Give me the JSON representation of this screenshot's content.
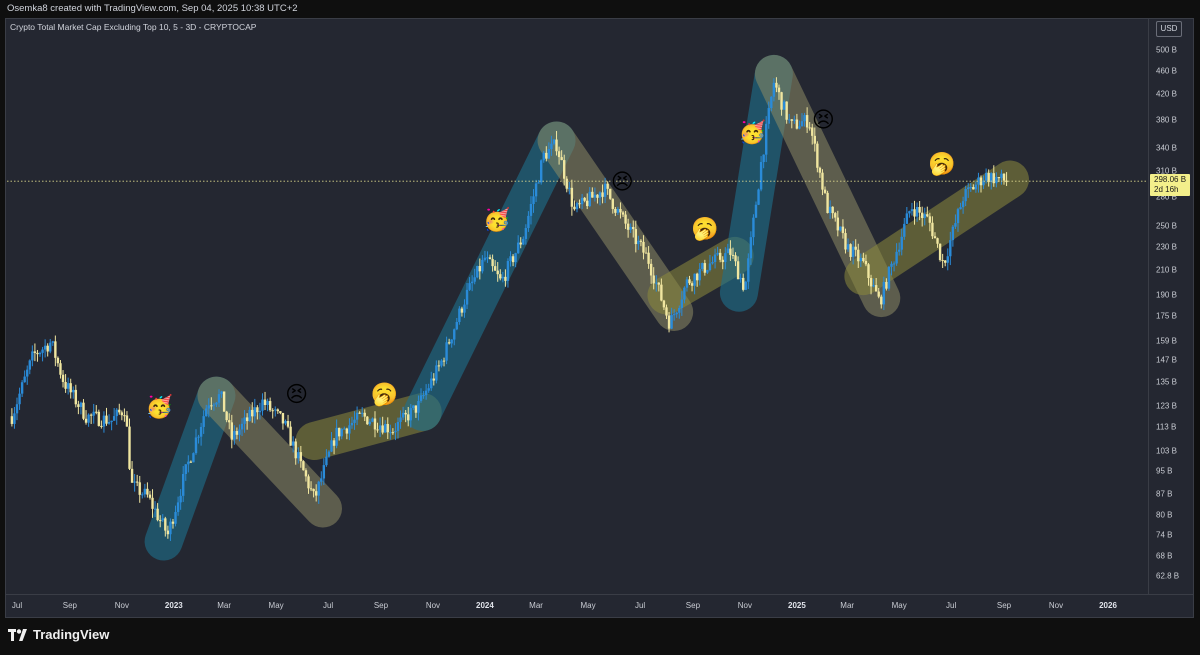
{
  "header": {
    "attribution": "Osemka8 created with TradingView.com, Sep 04, 2025 10:38 UTC+2"
  },
  "chart_data": {
    "type": "candlestick",
    "title": "Crypto Total Market Cap Excluding Top 10, 5 - 3D - CRYPTOCAP",
    "currency": "USD",
    "y_scale": "log",
    "y_ticks": [
      "500 B",
      "460 B",
      "420 B",
      "380 B",
      "340 B",
      "310 B",
      "280 B",
      "250 B",
      "230 B",
      "210 B",
      "190 B",
      "175 B",
      "159 B",
      "147 B",
      "135 B",
      "123 B",
      "113 B",
      "103 B",
      "95 B",
      "87 B",
      "80 B",
      "74 B",
      "68 B",
      "62.8 B"
    ],
    "x_ticks": [
      {
        "label": "Jul",
        "year": false
      },
      {
        "label": "Sep",
        "year": false
      },
      {
        "label": "Nov",
        "year": false
      },
      {
        "label": "2023",
        "year": true
      },
      {
        "label": "Mar",
        "year": false
      },
      {
        "label": "May",
        "year": false
      },
      {
        "label": "Jul",
        "year": false
      },
      {
        "label": "Sep",
        "year": false
      },
      {
        "label": "Nov",
        "year": false
      },
      {
        "label": "2024",
        "year": true
      },
      {
        "label": "Mar",
        "year": false
      },
      {
        "label": "May",
        "year": false
      },
      {
        "label": "Jul",
        "year": false
      },
      {
        "label": "Sep",
        "year": false
      },
      {
        "label": "Nov",
        "year": false
      },
      {
        "label": "2025",
        "year": true
      },
      {
        "label": "Mar",
        "year": false
      },
      {
        "label": "May",
        "year": false
      },
      {
        "label": "Jul",
        "year": false
      },
      {
        "label": "Sep",
        "year": false
      },
      {
        "label": "Nov",
        "year": false
      },
      {
        "label": "2026",
        "year": true
      }
    ],
    "current_price": {
      "value": "298.06 B",
      "countdown": "2d 16h"
    },
    "price_path": [
      [
        "2022-06-25",
        118
      ],
      [
        "2022-07-20",
        150
      ],
      [
        "2022-08-10",
        158
      ],
      [
        "2022-08-25",
        135
      ],
      [
        "2022-09-20",
        118
      ],
      [
        "2022-10-20",
        116
      ],
      [
        "2022-11-05",
        122
      ],
      [
        "2022-11-12",
        90
      ],
      [
        "2022-12-01",
        86
      ],
      [
        "2022-12-25",
        74
      ],
      [
        "2023-01-15",
        95
      ],
      [
        "2023-02-10",
        125
      ],
      [
        "2023-02-25",
        128
      ],
      [
        "2023-03-10",
        108
      ],
      [
        "2023-04-15",
        125
      ],
      [
        "2023-05-10",
        115
      ],
      [
        "2023-06-15",
        85
      ],
      [
        "2023-07-10",
        110
      ],
      [
        "2023-08-10",
        118
      ],
      [
        "2023-09-15",
        112
      ],
      [
        "2023-10-15",
        123
      ],
      [
        "2023-11-10",
        145
      ],
      [
        "2023-12-10",
        190
      ],
      [
        "2024-01-01",
        220
      ],
      [
        "2024-01-20",
        200
      ],
      [
        "2024-02-15",
        240
      ],
      [
        "2024-03-10",
        330
      ],
      [
        "2024-03-25",
        345
      ],
      [
        "2024-04-15",
        265
      ],
      [
        "2024-05-20",
        290
      ],
      [
        "2024-06-15",
        250
      ],
      [
        "2024-07-10",
        220
      ],
      [
        "2024-08-05",
        170
      ],
      [
        "2024-08-25",
        200
      ],
      [
        "2024-09-20",
        215
      ],
      [
        "2024-10-15",
        225
      ],
      [
        "2024-11-01",
        195
      ],
      [
        "2024-11-20",
        320
      ],
      [
        "2024-12-05",
        440
      ],
      [
        "2024-12-25",
        370
      ],
      [
        "2025-01-15",
        380
      ],
      [
        "2025-02-05",
        270
      ],
      [
        "2025-03-01",
        230
      ],
      [
        "2025-03-20",
        215
      ],
      [
        "2025-04-08",
        185
      ],
      [
        "2025-04-25",
        220
      ],
      [
        "2025-05-15",
        270
      ],
      [
        "2025-06-05",
        255
      ],
      [
        "2025-06-22",
        215
      ],
      [
        "2025-07-15",
        280
      ],
      [
        "2025-08-10",
        305
      ],
      [
        "2025-09-04",
        298
      ]
    ],
    "trend_markers": [
      {
        "type": "up",
        "color": "#1f6f8b",
        "from": [
          "2022-12-20",
          72
        ],
        "to": [
          "2023-02-20",
          128
        ]
      },
      {
        "type": "down",
        "color": "#8c8a64",
        "from": [
          "2023-02-20",
          128
        ],
        "to": [
          "2023-06-25",
          82
        ]
      },
      {
        "type": "range",
        "color": "#8c8a3c",
        "from": [
          "2023-06-15",
          107
        ],
        "to": [
          "2023-10-20",
          120
        ]
      },
      {
        "type": "up",
        "color": "#1f6f8b",
        "from": [
          "2023-10-20",
          120
        ],
        "to": [
          "2024-03-25",
          350
        ]
      },
      {
        "type": "down",
        "color": "#8c8a64",
        "from": [
          "2024-03-25",
          350
        ],
        "to": [
          "2024-08-10",
          178
        ]
      },
      {
        "type": "range",
        "color": "#8c8a3c",
        "from": [
          "2024-08-01",
          190
        ],
        "to": [
          "2024-10-20",
          222
        ]
      },
      {
        "type": "up",
        "color": "#1f6f8b",
        "from": [
          "2024-10-25",
          192
        ],
        "to": [
          "2024-12-05",
          455
        ]
      },
      {
        "type": "down",
        "color": "#8c8a64",
        "from": [
          "2024-12-05",
          455
        ],
        "to": [
          "2025-04-10",
          188
        ]
      },
      {
        "type": "range",
        "color": "#8c8a3c",
        "from": [
          "2025-03-20",
          205
        ],
        "to": [
          "2025-09-08",
          300
        ]
      }
    ],
    "emojis": [
      {
        "mood": "party",
        "glyph": "🥳",
        "x": "2022-12-15",
        "y": 122
      },
      {
        "mood": "tired",
        "glyph": "😣",
        "x": "2023-05-25",
        "y": 128
      },
      {
        "mood": "yawn",
        "glyph": "🥱",
        "x": "2023-09-05",
        "y": 128
      },
      {
        "mood": "party",
        "glyph": "🥳",
        "x": "2024-01-15",
        "y": 255
      },
      {
        "mood": "tired",
        "glyph": "😣",
        "x": "2024-06-10",
        "y": 296
      },
      {
        "mood": "yawn",
        "glyph": "🥱",
        "x": "2024-09-15",
        "y": 246
      },
      {
        "mood": "party",
        "glyph": "🥳",
        "x": "2024-11-10",
        "y": 360
      },
      {
        "mood": "tired",
        "glyph": "😣",
        "x": "2025-02-01",
        "y": 378
      },
      {
        "mood": "yawn",
        "glyph": "🥱",
        "x": "2025-06-20",
        "y": 318
      }
    ],
    "colors": {
      "up": "#2a8bd8",
      "down": "#f0e6a0",
      "bg": "#242731"
    }
  },
  "footer": {
    "brand": "TradingView"
  }
}
